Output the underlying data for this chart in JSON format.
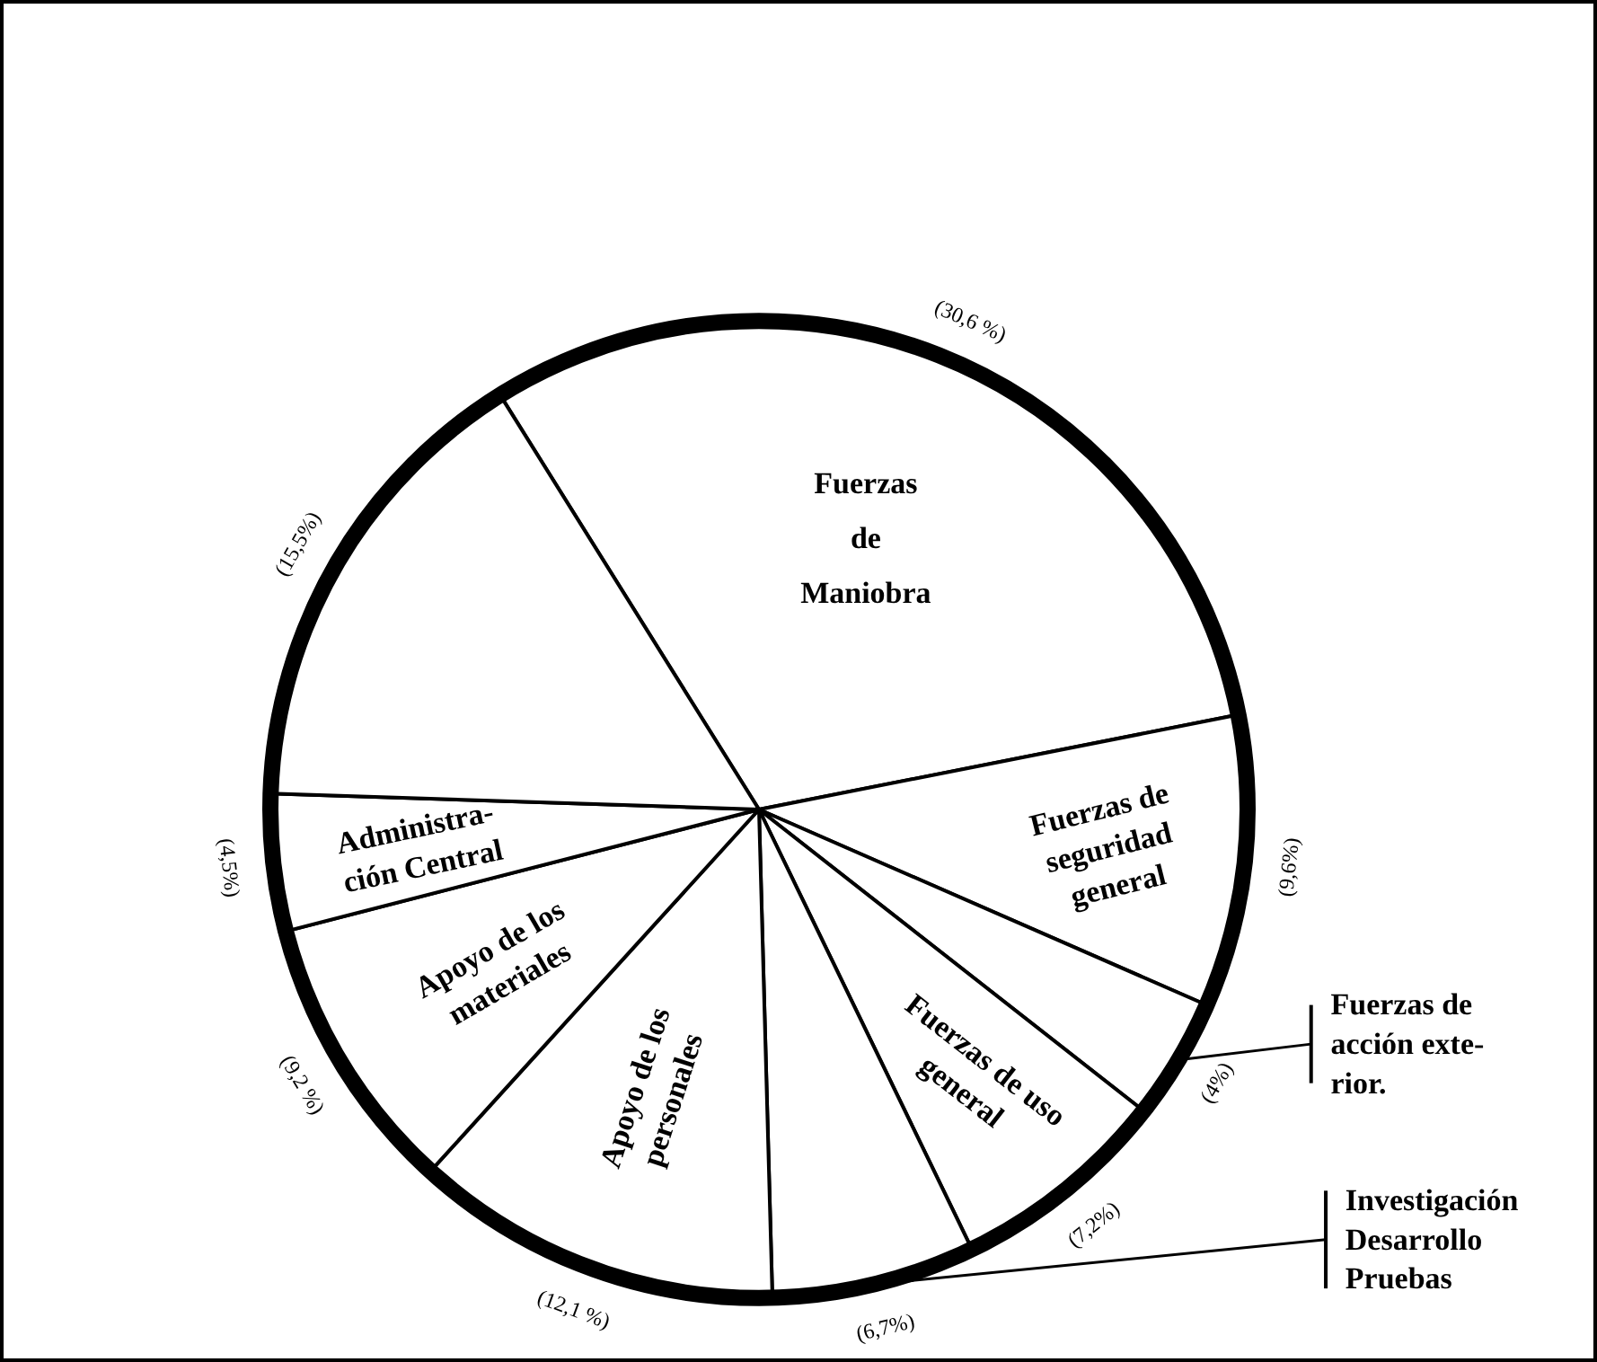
{
  "chart_data": {
    "type": "pie",
    "categories": [
      "Fuerzas\nde\nManiobra",
      "Fuerzas de\nseguridad\ngeneral",
      "Fuerzas de\nacción exte-\nrior.",
      "Fuerzas de uso\ngeneral",
      "Investigación\nDesarrollo\nPruebas",
      "Apoyo de los\npersonales",
      "Apoyo de los\nmateriales",
      "Administra-\nción Central",
      null
    ],
    "values": [
      30.6,
      9.6,
      4,
      7.2,
      6.7,
      12.1,
      9.2,
      4.5,
      15.5
    ],
    "value_labels": [
      "(30,6 %)",
      "(9,6%)",
      "(4%)",
      "(7,2%)",
      "(6,7%)",
      "(12,1 %)",
      "(9,2 %)",
      "(4,5%)",
      "(15,5%)"
    ],
    "colors": [
      "#ffffff",
      "#ffffff",
      "#ffffff",
      "#ffffff",
      "#ffffff",
      "#ffffff",
      "#ffffff",
      "#ffffff",
      "#ffffff"
    ]
  }
}
